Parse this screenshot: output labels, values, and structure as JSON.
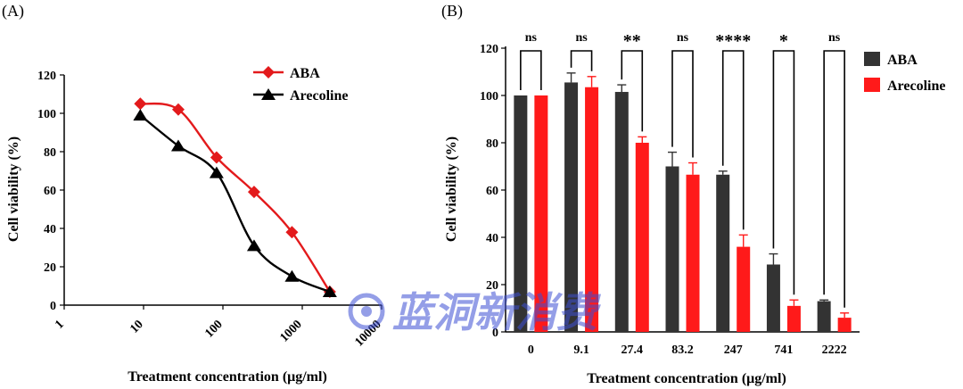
{
  "chart_data": [
    {
      "panel_label": "(A)",
      "type": "line",
      "xscale": "log",
      "xlim": [
        1,
        10000
      ],
      "ylim": [
        0,
        120
      ],
      "xticks": [
        1,
        10,
        100,
        1000,
        10000
      ],
      "xtick_labels": [
        "1",
        "10",
        "100",
        "1000",
        "10000"
      ],
      "yticks": [
        0,
        20,
        40,
        60,
        80,
        100,
        120
      ],
      "xlabel": "Treatment concentration  (μg/ml)",
      "ylabel": "Cell viability (%)",
      "legend_position": "top-right",
      "series": [
        {
          "name": "ABA",
          "color": "#e31a1c",
          "marker": "diamond",
          "x": [
            9.1,
            27.4,
            83.2,
            247,
            741,
            2222
          ],
          "y": [
            105,
            102,
            77,
            59,
            38,
            7
          ]
        },
        {
          "name": "Arecoline",
          "color": "#000000",
          "marker": "triangle",
          "x": [
            9.1,
            27.4,
            83.2,
            247,
            741,
            2222
          ],
          "y": [
            99,
            83,
            69,
            31,
            15,
            7
          ]
        }
      ]
    },
    {
      "panel_label": "(B)",
      "type": "bar",
      "categories": [
        "0",
        "9.1",
        "27.4",
        "83.2",
        "247",
        "741",
        "2222"
      ],
      "ylim": [
        0,
        120
      ],
      "yticks": [
        0,
        20,
        40,
        60,
        80,
        100,
        120
      ],
      "xlabel": "Treatment concentration  (μg/ml)",
      "ylabel": "Cell viability (%)",
      "legend_position": "top-right",
      "series": [
        {
          "name": "ABA",
          "color": "#333333",
          "values": [
            100,
            105.5,
            101.5,
            70,
            66.5,
            28.5,
            13
          ],
          "errors": [
            0,
            4,
            3,
            6,
            1.5,
            4.5,
            0.5
          ]
        },
        {
          "name": "Arecoline",
          "color": "#ff1a1a",
          "values": [
            100,
            103.5,
            80,
            66.5,
            36,
            11,
            6
          ],
          "errors": [
            0,
            4.5,
            2.5,
            5,
            5,
            2.5,
            2
          ]
        }
      ],
      "significance": [
        "ns",
        "ns",
        "**",
        "ns",
        "****",
        "*",
        "ns"
      ]
    }
  ],
  "watermark": {
    "text": "蓝洞新消费"
  }
}
